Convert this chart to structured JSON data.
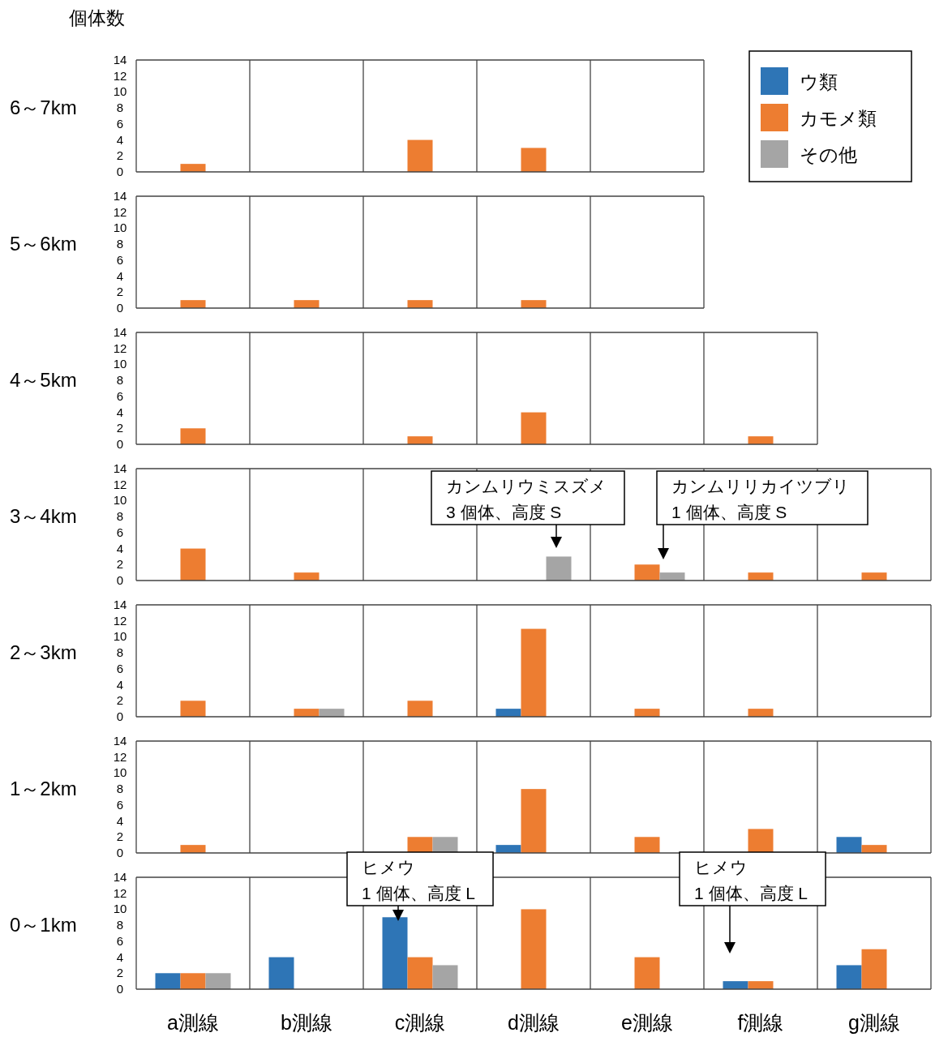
{
  "chart_data": [
    {
      "type": "bar",
      "title": "個体数",
      "ylabel": "6～7km",
      "categories": [
        null,
        null,
        null,
        null,
        null
      ],
      "series": [
        {
          "name": "ウ類",
          "color": "#2e75b6",
          "values": [
            0,
            0,
            0,
            0,
            0
          ]
        },
        {
          "name": "カモメ類",
          "color": "#ed7d31",
          "values": [
            1,
            0,
            4,
            3,
            0
          ]
        },
        {
          "name": "その他",
          "color": "#a5a5a5",
          "values": [
            0,
            0,
            0,
            0,
            0
          ]
        }
      ],
      "ylim": [
        0,
        14
      ],
      "yticks": [
        0,
        2,
        4,
        6,
        8,
        10,
        12,
        14
      ],
      "tick_labels": "y",
      "grid": "x",
      "legend": "right"
    },
    {
      "type": "bar",
      "ylabel": "5～6km",
      "categories": [
        null,
        null,
        null,
        null,
        null
      ],
      "series": [
        {
          "color": "#2e75b6",
          "values": [
            0,
            0,
            0,
            0,
            0
          ]
        },
        {
          "color": "#ed7d31",
          "values": [
            1,
            1,
            1,
            1,
            0
          ]
        },
        {
          "color": "#a5a5a5",
          "values": [
            0,
            0,
            0,
            0,
            0
          ]
        }
      ],
      "ylim": [
        0,
        14
      ],
      "yticks": [
        0,
        2,
        4,
        6,
        8,
        10,
        12,
        14
      ],
      "tick_labels": "y",
      "grid": "x"
    },
    {
      "type": "bar",
      "ylabel": "4～5km",
      "categories": [
        null,
        null,
        null,
        null,
        null,
        null
      ],
      "series": [
        {
          "color": "#2e75b6",
          "values": [
            0,
            0,
            0,
            0,
            0,
            0
          ]
        },
        {
          "color": "#ed7d31",
          "values": [
            2,
            0,
            1,
            4,
            0,
            1
          ]
        },
        {
          "color": "#a5a5a5",
          "values": [
            0,
            0,
            0,
            0,
            0,
            0
          ]
        }
      ],
      "ylim": [
        0,
        14
      ],
      "yticks": [
        0,
        2,
        4,
        6,
        8,
        10,
        12,
        14
      ],
      "tick_labels": "y",
      "grid": "x"
    },
    {
      "type": "bar",
      "ylabel": "3～4km",
      "categories": [
        null,
        null,
        null,
        null,
        null,
        null,
        null
      ],
      "series": [
        {
          "color": "#2e75b6",
          "values": [
            0,
            0,
            0,
            0,
            0,
            0,
            0
          ]
        },
        {
          "color": "#ed7d31",
          "values": [
            4,
            1,
            0,
            0,
            2,
            1,
            1
          ]
        },
        {
          "color": "#a5a5a5",
          "values": [
            0,
            0,
            0,
            3,
            1,
            0,
            0
          ]
        }
      ],
      "ylim": [
        0,
        14
      ],
      "yticks": [
        0,
        2,
        4,
        6,
        8,
        10,
        12,
        14
      ],
      "tick_labels": "y",
      "grid": "x",
      "annotations": [
        "カンムリウミスズメ\n3 個体、高度 S",
        "カンムリリカイツブリ\n1 個体、高度 S"
      ]
    },
    {
      "type": "bar",
      "ylabel": "2～3km",
      "categories": [
        null,
        null,
        null,
        null,
        null,
        null,
        null
      ],
      "series": [
        {
          "color": "#2e75b6",
          "values": [
            0,
            0,
            0,
            1,
            0,
            0,
            0
          ]
        },
        {
          "color": "#ed7d31",
          "values": [
            2,
            1,
            2,
            11,
            1,
            1,
            0
          ]
        },
        {
          "color": "#a5a5a5",
          "values": [
            0,
            1,
            0,
            0,
            0,
            0,
            0
          ]
        }
      ],
      "ylim": [
        0,
        14
      ],
      "yticks": [
        0,
        2,
        4,
        6,
        8,
        10,
        12,
        14
      ],
      "tick_labels": "y",
      "grid": "x"
    },
    {
      "type": "bar",
      "ylabel": "1～2km",
      "categories": [
        null,
        null,
        null,
        null,
        null,
        null,
        null
      ],
      "series": [
        {
          "color": "#2e75b6",
          "values": [
            0,
            0,
            0,
            1,
            0,
            0,
            2
          ]
        },
        {
          "color": "#ed7d31",
          "values": [
            1,
            0,
            2,
            8,
            2,
            3,
            1
          ]
        },
        {
          "color": "#a5a5a5",
          "values": [
            0,
            0,
            2,
            0,
            0,
            0,
            0
          ]
        }
      ],
      "ylim": [
        0,
        14
      ],
      "yticks": [
        0,
        2,
        4,
        6,
        8,
        10,
        12,
        14
      ],
      "tick_labels": "y",
      "grid": "x"
    },
    {
      "type": "bar",
      "ylabel": "0～1km",
      "categories": [
        "a測線",
        "b測線",
        "c測線",
        "d測線",
        "e測線",
        "f測線",
        "g測線"
      ],
      "series": [
        {
          "color": "#2e75b6",
          "values": [
            2,
            4,
            9,
            0,
            0,
            1,
            3
          ]
        },
        {
          "color": "#ed7d31",
          "values": [
            2,
            0,
            4,
            10,
            4,
            1,
            5
          ]
        },
        {
          "color": "#a5a5a5",
          "values": [
            2,
            0,
            3,
            0,
            0,
            0,
            0
          ]
        }
      ],
      "ylim": [
        0,
        14
      ],
      "yticks": [
        0,
        2,
        4,
        6,
        8,
        10,
        12,
        14
      ],
      "grid": "x",
      "annotations": [
        "ヒメウ\n1 個体、高度 L",
        "ヒメウ\n1 個体、高度 L"
      ]
    }
  ]
}
